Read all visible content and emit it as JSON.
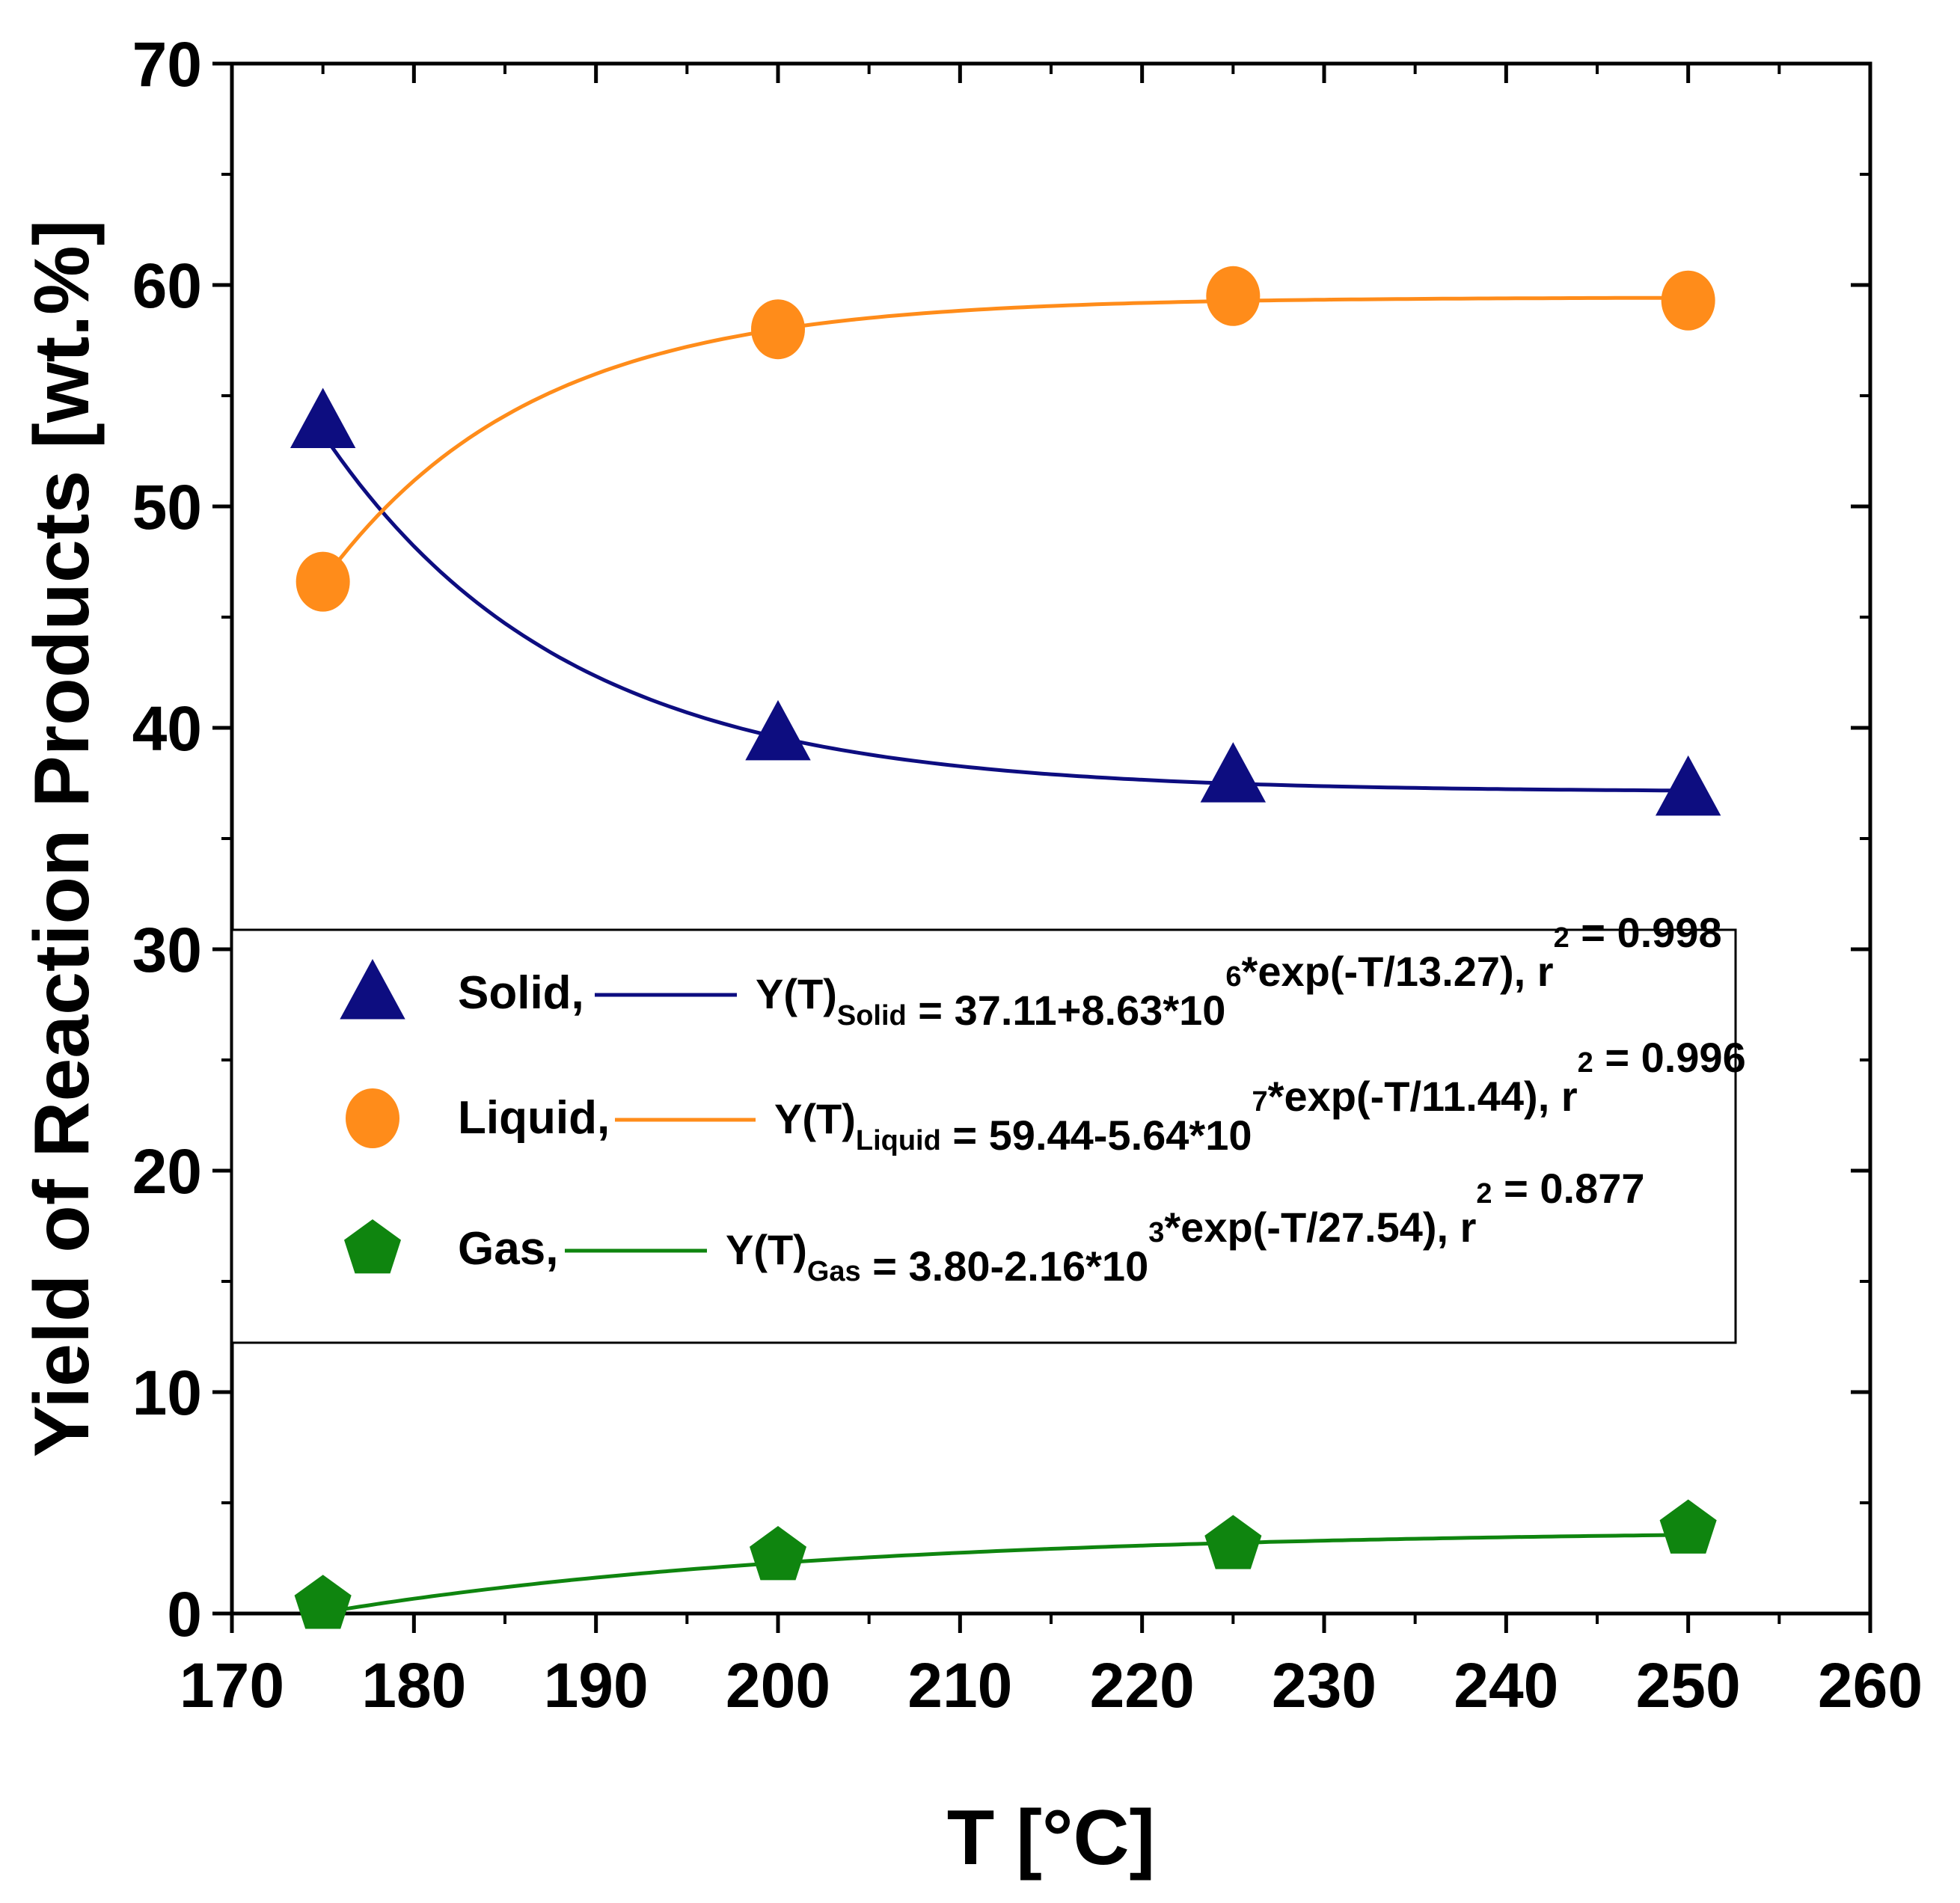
{
  "chart_data": {
    "type": "scatter",
    "xlabel": "T [°C]",
    "ylabel": "Yield of Reaction Products [wt.%]",
    "xlim": [
      170,
      260
    ],
    "ylim": [
      0,
      70
    ],
    "xticks": [
      "170",
      "180",
      "190",
      "200",
      "210",
      "220",
      "230",
      "240",
      "250",
      "260"
    ],
    "yticks": [
      "0",
      "10",
      "20",
      "30",
      "40",
      "50",
      "60",
      "70"
    ],
    "x": [
      175,
      200,
      225,
      250
    ],
    "series": [
      {
        "name": "Solid",
        "marker": "triangle",
        "color": "#0d0d80",
        "values": [
          53.8,
          39.7,
          37.8,
          37.2
        ],
        "fit": {
          "a": 37.11,
          "b": 8630000.0,
          "t": 13.27
        },
        "legend_label": "Solid,",
        "eq_main": "Y(T)",
        "eq_sub": "Solid",
        "eq_rest1": " = 37.11+8.63*10",
        "eq_sup": "6",
        "eq_rest2": "*exp(-T/13.27), r",
        "eq_r2sup": "2",
        "eq_rest3": " = 0.998"
      },
      {
        "name": "Liquid",
        "marker": "circle",
        "color": "#ff8c1a",
        "values": [
          46.6,
          58.0,
          59.5,
          59.3
        ],
        "fit": {
          "a": 59.44,
          "b": -56400000.0,
          "t": 11.44
        },
        "legend_label": "Liquid,",
        "eq_main": "Y(T)",
        "eq_sub": "Liquid",
        "eq_rest1": " = 59.44-5.64*10",
        "eq_sup": "7",
        "eq_rest2": "*exp(-T/11.44), r",
        "eq_r2sup": "2",
        "eq_rest3": " = 0.996"
      },
      {
        "name": "Gas",
        "marker": "pentagon",
        "color": "#0f850f",
        "values": [
          0.4,
          2.6,
          3.1,
          3.8
        ],
        "fit": {
          "a": 3.8,
          "b": -2160.0,
          "t": 27.54
        },
        "legend_label": "Gas,",
        "eq_main": "Y(T)",
        "eq_sub": "Gas",
        "eq_rest1": " = 3.80-2.16*10",
        "eq_sup": "3",
        "eq_rest2": "*exp(-T/27.54), r",
        "eq_r2sup": "2",
        "eq_rest3": " = 0.877"
      }
    ],
    "legend_position": "center-left",
    "grid": false
  }
}
